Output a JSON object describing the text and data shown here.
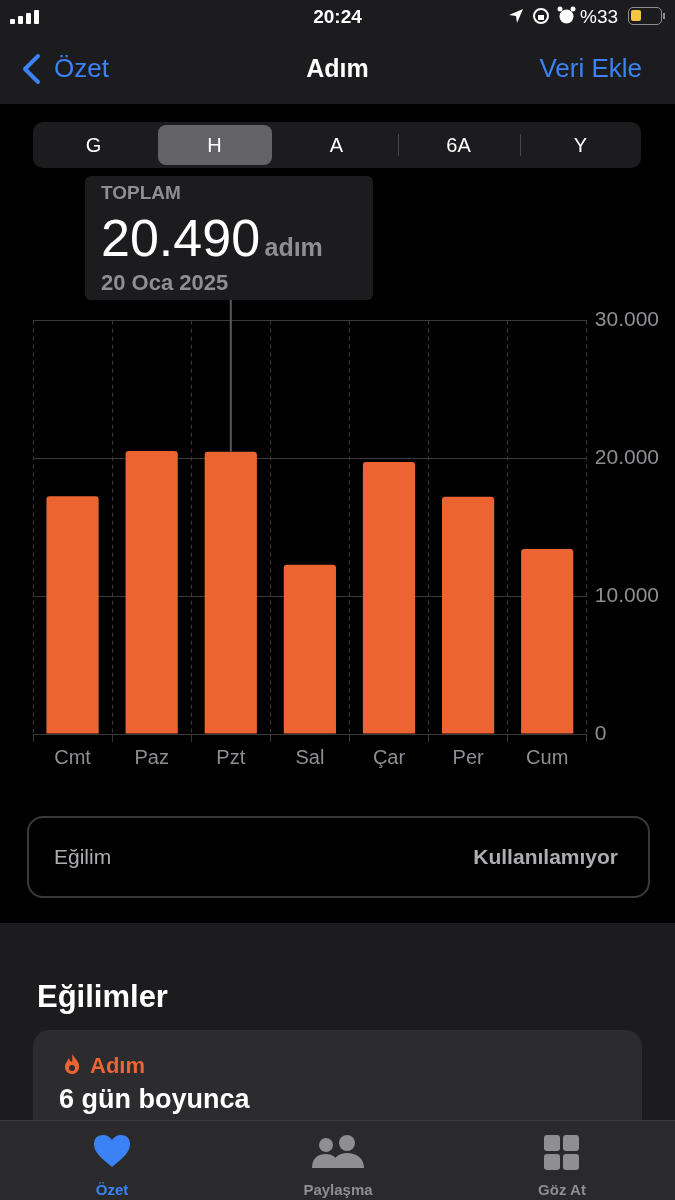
{
  "chart_data": {
    "type": "bar",
    "title": "Adım",
    "categories": [
      "Cmt",
      "Paz",
      "Pzt",
      "Sal",
      "Çar",
      "Per",
      "Cum"
    ],
    "values": [
      17250,
      20530,
      20490,
      12290,
      19740,
      17220,
      13420
    ],
    "color": "#ec6432",
    "ylim": [
      0,
      30000
    ],
    "yticks": [
      {
        "value": 0,
        "label": "0"
      },
      {
        "value": 10000,
        "label": "10.000"
      },
      {
        "value": 20000,
        "label": "20.000"
      },
      {
        "value": 30000,
        "label": "30.000"
      }
    ],
    "grid": true,
    "annotations": [
      "20:24",
      "%33",
      "Özet",
      "Veri Ekle",
      "G",
      "H",
      "A",
      "6A",
      "Y",
      "TOPLAM",
      {
        "text": "20.490",
        "x": "Pzt",
        "y": 20490
      },
      "adım",
      "20 Oca 2025",
      "Eğilim",
      "Kullanılamıyor",
      "Eğilimler",
      "Adım",
      "6 gün boyunca",
      "Özet",
      "Paylaşma",
      "Göz At"
    ]
  }
}
